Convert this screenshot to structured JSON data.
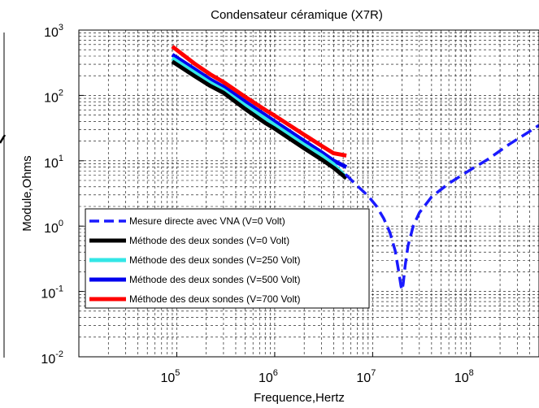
{
  "chart_data": {
    "type": "line",
    "title": "Condensateur céramique (X7R)",
    "xlabel": "Frequence,Hertz",
    "ylabel": "Module,Ohms",
    "xscale": "log",
    "yscale": "log",
    "xlim": [
      10000,
      500000000
    ],
    "ylim": [
      0.01,
      1000
    ],
    "grid": true,
    "legend_placement": "lower-left",
    "x_tick_labels": [
      {
        "value": 100000,
        "base": "10",
        "exp": "5"
      },
      {
        "value": 1000000,
        "base": "10",
        "exp": "6"
      },
      {
        "value": 10000000,
        "base": "10",
        "exp": "7"
      },
      {
        "value": 100000000,
        "base": "10",
        "exp": "8"
      }
    ],
    "y_tick_labels": [
      {
        "value": 0.01,
        "base": "10",
        "exp": "-2"
      },
      {
        "value": 0.1,
        "base": "10",
        "exp": "-1"
      },
      {
        "value": 1,
        "base": "10",
        "exp": "0"
      },
      {
        "value": 10,
        "base": "10",
        "exp": "1"
      },
      {
        "value": 100,
        "base": "10",
        "exp": "2"
      },
      {
        "value": 1000,
        "base": "10",
        "exp": "3"
      }
    ],
    "series": [
      {
        "name": "Mesure directe avec VNA (V=0 Volt)",
        "color": "#1a1aff",
        "style": "dashed",
        "x": [
          5300000,
          7000000,
          9000000,
          11000000,
          13000000,
          15000000,
          17000000,
          18500000,
          19500000,
          20000000,
          20500000,
          21500000,
          23000000,
          26000000,
          30000000,
          40000000,
          60000000,
          100000000,
          150000000,
          250000000,
          400000000,
          500000000
        ],
        "y": [
          6.2,
          4.1,
          2.9,
          2.0,
          1.3,
          0.8,
          0.42,
          0.2,
          0.12,
          0.105,
          0.13,
          0.25,
          0.5,
          1.0,
          1.6,
          2.8,
          4.5,
          7.3,
          10.5,
          18,
          28,
          35
        ]
      },
      {
        "name": "Méthode des deux sondes (V=0 Volt)",
        "color": "#000000",
        "style": "solid",
        "x": [
          90000,
          150000,
          220000,
          300000,
          500000,
          800000,
          1000000,
          2000000,
          3000000,
          4000000,
          5400000
        ],
        "y": [
          330,
          200,
          140,
          110,
          62,
          38,
          31,
          15.5,
          10.5,
          7.8,
          5.4
        ]
      },
      {
        "name": "Méthode des deux sondes (V=250 Volt)",
        "color": "#33e6e6",
        "style": "solid",
        "x": [
          90000,
          150000,
          220000,
          300000,
          500000,
          800000,
          1000000,
          2000000,
          3000000,
          4000000,
          5400000
        ],
        "y": [
          370,
          225,
          155,
          120,
          70,
          44,
          35,
          17.5,
          12,
          8.8,
          5.5
        ]
      },
      {
        "name": "Méthode des deux sondes (V=500 Volt)",
        "color": "#0000ee",
        "style": "solid",
        "x": [
          90000,
          150000,
          220000,
          300000,
          500000,
          800000,
          1000000,
          2000000,
          3000000,
          4000000,
          5400000
        ],
        "y": [
          420,
          255,
          175,
          135,
          80,
          50,
          40,
          20,
          13.5,
          10,
          8
        ]
      },
      {
        "name": "Méthode des deux sondes (V=700 Volt)",
        "color": "#ff0000",
        "style": "solid",
        "x": [
          90000,
          150000,
          220000,
          300000,
          500000,
          800000,
          1000000,
          2000000,
          3000000,
          4000000,
          5400000
        ],
        "y": [
          560,
          310,
          210,
          160,
          95,
          60,
          49,
          25,
          17,
          13,
          12
        ]
      }
    ]
  }
}
